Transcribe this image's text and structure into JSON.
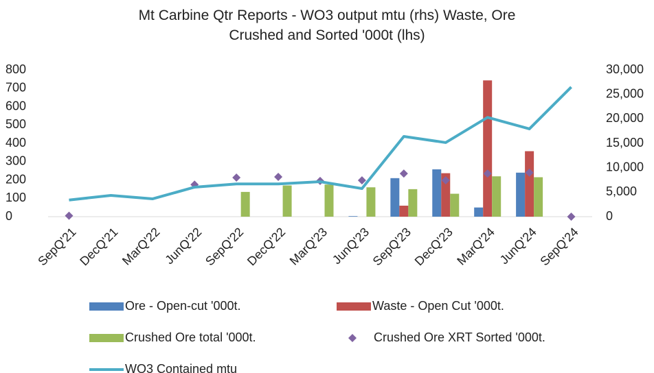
{
  "chart_data": {
    "type": "combo",
    "title": "Mt Carbine Qtr Reports - WO3 output mtu (rhs) Waste, Ore Crushed and Sorted '000t (lhs)",
    "categories": [
      "SepQ'21",
      "DecQ'21",
      "MarQ'22",
      "JunQ'22",
      "SepQ'22",
      "DecQ'22",
      "MarQ'23",
      "JunQ'23",
      "SepQ'23",
      "DecQ'23",
      "MarQ'24",
      "JunQ'24",
      "SepQ'24"
    ],
    "ylim": [
      0,
      800
    ],
    "yticks": [
      0,
      100,
      200,
      300,
      400,
      500,
      600,
      700,
      800
    ],
    "y2lim": [
      0,
      30000
    ],
    "y2ticks": [
      0,
      {
        "value": 5000,
        "label": "5,000"
      },
      {
        "value": 10000,
        "label": "10,000"
      },
      {
        "value": 15000,
        "label": "15,000"
      },
      {
        "value": 20000,
        "label": "20,000"
      },
      {
        "value": 25000,
        "label": "25,000"
      },
      {
        "value": 30000,
        "label": "30,000"
      }
    ],
    "grid": false,
    "series": [
      {
        "name": "Ore - Open-cut '000t.",
        "type": "bar",
        "color": "#4f81bd",
        "values": [
          null,
          null,
          null,
          null,
          null,
          null,
          null,
          3,
          210,
          258,
          50,
          240,
          null
        ]
      },
      {
        "name": "Waste - Open Cut '000t.",
        "type": "bar",
        "color": "#c0504d",
        "values": [
          null,
          null,
          null,
          null,
          null,
          null,
          null,
          null,
          60,
          237,
          743,
          357,
          null
        ]
      },
      {
        "name": "Crushed Ore total '000t.",
        "type": "bar",
        "color": "#9bbb59",
        "values": [
          null,
          null,
          null,
          null,
          135,
          170,
          175,
          160,
          150,
          125,
          220,
          215,
          null
        ]
      },
      {
        "name": "Crushed Ore XRT Sorted '000t.",
        "type": "scatter",
        "color": "#8064a2",
        "values": [
          5,
          null,
          null,
          175,
          213,
          217,
          195,
          198,
          235,
          198,
          235,
          240,
          0
        ]
      },
      {
        "name": "WO3 Contained mtu",
        "type": "line",
        "axis": "y2",
        "color": "#4bacc6",
        "values": [
          3400,
          4350,
          3650,
          6030,
          6700,
          6700,
          7150,
          5750,
          16400,
          15150,
          20300,
          17950,
          26500
        ]
      }
    ]
  }
}
